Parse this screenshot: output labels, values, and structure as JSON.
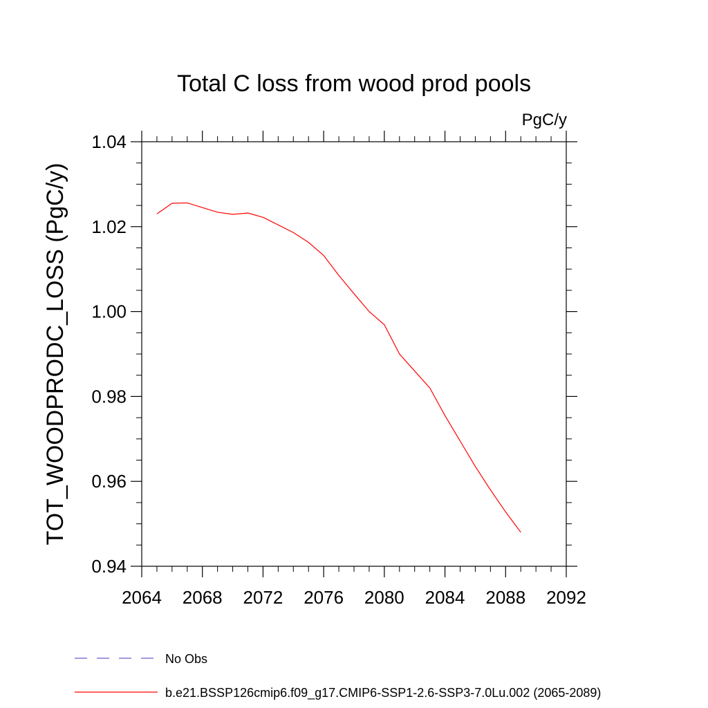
{
  "chart_data": {
    "type": "line",
    "title": "Total C loss from wood prod pools",
    "units_label": "PgC/y",
    "ylabel": "TOT_WOODPRODC_LOSS  (PgC/y)",
    "xlabel": "",
    "xlim": [
      2064,
      2092
    ],
    "ylim": [
      0.94,
      1.04
    ],
    "x_ticks": [
      "2064",
      "2068",
      "2072",
      "2076",
      "2080",
      "2084",
      "2088",
      "2092"
    ],
    "y_ticks": [
      "0.94",
      "0.96",
      "0.98",
      "1.00",
      "1.02",
      "1.04"
    ],
    "grid": false,
    "legend_position": "bottom",
    "series": [
      {
        "name": "No Obs",
        "color": "#6a5acd",
        "dash": "dashed",
        "x": [],
        "y": []
      },
      {
        "name": "b.e21.BSSP126cmip6.f09_g17.CMIP6-SSP1-2.6-SSP3-7.0Lu.002 (2065-2089)",
        "color": "#ff0000",
        "dash": "solid",
        "x": [
          2065,
          2066,
          2067,
          2068,
          2069,
          2070,
          2071,
          2072,
          2073,
          2074,
          2075,
          2076,
          2077,
          2078,
          2079,
          2080,
          2081,
          2082,
          2083,
          2084,
          2085,
          2086,
          2087,
          2088,
          2089
        ],
        "y": [
          1.023,
          1.0255,
          1.0256,
          1.0245,
          1.0234,
          1.0229,
          1.0232,
          1.0222,
          1.0204,
          1.0186,
          1.0163,
          1.0132,
          1.0085,
          1.0042,
          1.0,
          0.9969,
          0.99,
          0.986,
          0.982,
          0.9755,
          0.9695,
          0.9635,
          0.958,
          0.9528,
          0.948
        ]
      }
    ]
  }
}
